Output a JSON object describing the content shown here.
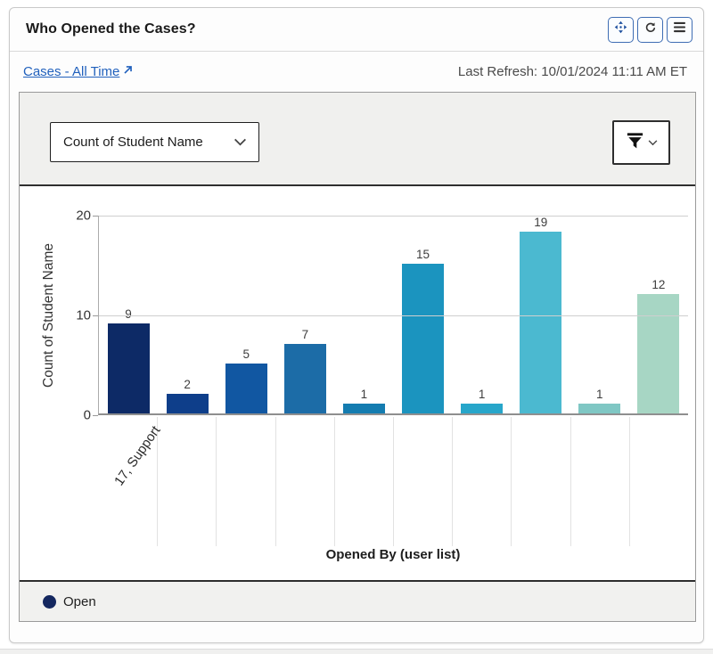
{
  "header": {
    "title": "Who Opened the Cases?",
    "buttons": [
      {
        "icon": "move-icon"
      },
      {
        "icon": "refresh-icon"
      },
      {
        "icon": "menu-icon"
      }
    ]
  },
  "subheader": {
    "link_label": "Cases - All Time",
    "last_refresh": "Last Refresh: 10/01/2024 11:11 AM ET"
  },
  "controls": {
    "measure_dropdown_value": "Count of Student Name",
    "filter_icon": "filter-funnel-icon"
  },
  "colors": {
    "link_blue": "#2161bd",
    "move_icon_blue": "#1d4f9e",
    "icon_dark": "#333333"
  },
  "chart_data": {
    "type": "bar",
    "categories": [
      "17, Support",
      "",
      "",
      "",
      "",
      "",
      "",
      "",
      "",
      ""
    ],
    "values": [
      9,
      2,
      5,
      7,
      1,
      15,
      1,
      19,
      1,
      12
    ],
    "bar_colors": [
      "#0d2a66",
      "#0e3e8a",
      "#1157a2",
      "#1c6ca7",
      "#147cb0",
      "#1b94bf",
      "#27a6ca",
      "#4bb9d0",
      "#7fc7c4",
      "#a7d6c4"
    ],
    "title": "",
    "xlabel": "Opened By (user list)",
    "ylabel": "Count of Student Name",
    "yticks": [
      0,
      10,
      20
    ],
    "ylim": [
      0,
      20
    ],
    "grid": "horizontal",
    "legend": {
      "position": "bottom-left",
      "items": [
        {
          "label": "Open",
          "color": "#14275f"
        }
      ]
    }
  }
}
